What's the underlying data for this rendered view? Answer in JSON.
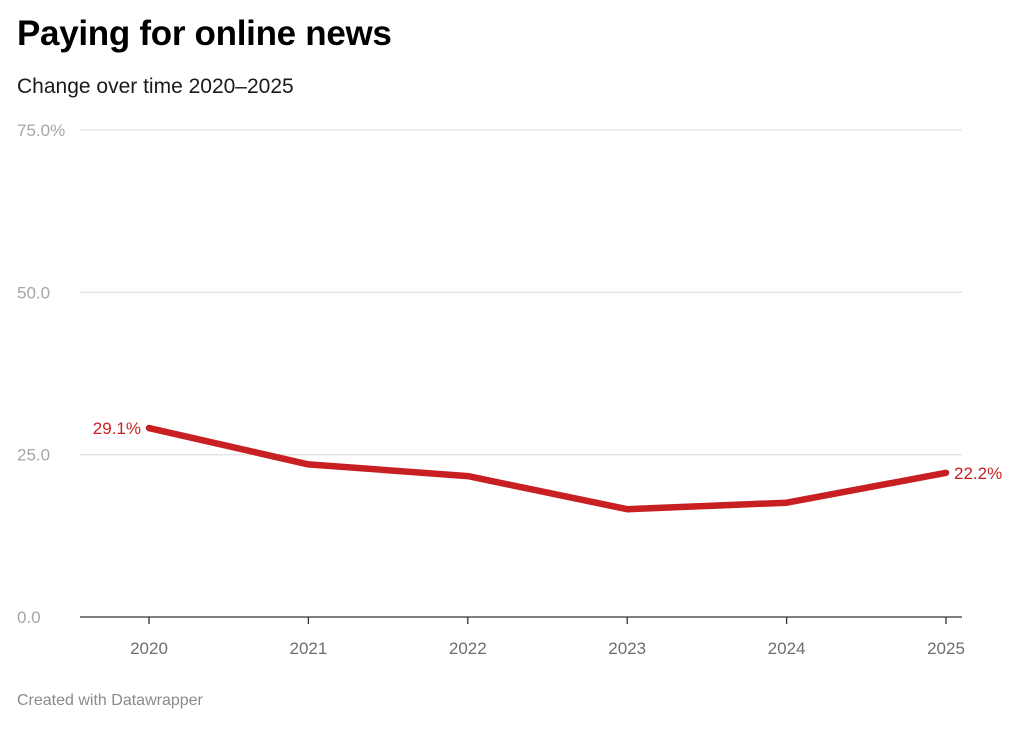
{
  "header": {
    "title": "Paying for online news",
    "subtitle": "Change over time 2020–2025"
  },
  "footer": {
    "credit": "Created with Datawrapper"
  },
  "colors": {
    "series": "#c71f22",
    "gridline": "#e3e3e3",
    "baseline": "#333333",
    "y_tick_text": "#a6a6a6",
    "x_tick_text": "#6e6e6e"
  },
  "chart_data": {
    "type": "line",
    "title": "Paying for online news",
    "subtitle": "Change over time 2020–2025",
    "xlabel": "",
    "ylabel": "",
    "x": [
      "2020",
      "2021",
      "2022",
      "2023",
      "2024",
      "2025"
    ],
    "series": [
      {
        "values": [
          29.1,
          23.5,
          21.7,
          16.6,
          17.6,
          22.2
        ]
      }
    ],
    "ylim": [
      0,
      75
    ],
    "y_ticks": [
      {
        "value": 0,
        "label": "0.0"
      },
      {
        "value": 25,
        "label": "25.0"
      },
      {
        "value": 50,
        "label": "50.0"
      },
      {
        "value": 75,
        "label": "75.0%"
      }
    ],
    "data_labels": [
      {
        "index": 0,
        "text": "29.1%"
      },
      {
        "index": 5,
        "text": "22.2%"
      }
    ],
    "grid": true,
    "legend": "none"
  }
}
